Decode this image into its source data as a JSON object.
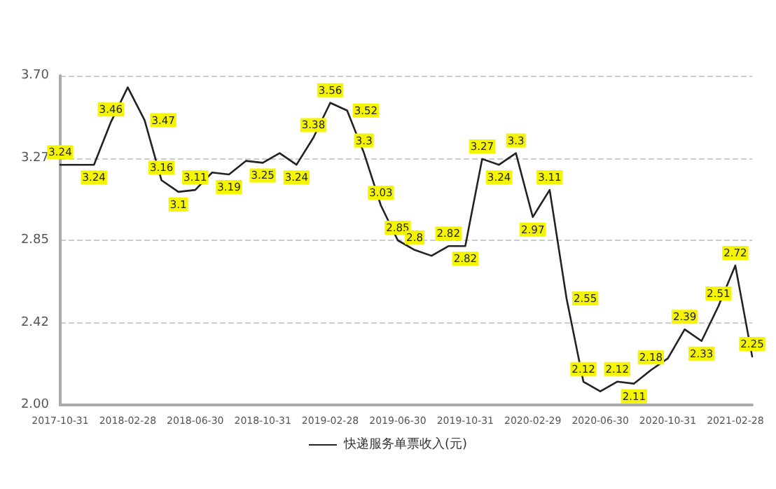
{
  "chart_data": {
    "type": "line",
    "categories": [
      "2017-10-31",
      null,
      null,
      null,
      "2018-02-28",
      null,
      null,
      null,
      "2018-06-30",
      null,
      null,
      null,
      "2018-10-31",
      null,
      null,
      null,
      "2019-02-28",
      null,
      null,
      null,
      "2019-06-30",
      null,
      null,
      null,
      "2019-10-31",
      null,
      null,
      null,
      "2020-02-29",
      null,
      null,
      null,
      "2020-06-30",
      null,
      null,
      null,
      "2020-10-31",
      null,
      null,
      null,
      "2021-02-28",
      null
    ],
    "series": [
      {
        "name": "快递服务单票收入(元)",
        "color": "#222222",
        "values": [
          3.24,
          3.24,
          3.24,
          3.46,
          3.64,
          3.47,
          3.16,
          3.1,
          3.11,
          3.2,
          3.19,
          3.26,
          3.25,
          3.3,
          3.24,
          3.38,
          3.56,
          3.52,
          3.3,
          3.03,
          2.85,
          2.8,
          2.77,
          2.82,
          2.82,
          3.27,
          3.24,
          3.3,
          2.97,
          3.11,
          2.55,
          2.12,
          2.07,
          2.12,
          2.11,
          2.18,
          2.24,
          2.39,
          2.33,
          2.51,
          2.72,
          2.25
        ],
        "value_labels": [
          "3.24",
          null,
          "3.24",
          "3.46",
          null,
          "3.47",
          "3.16",
          "3.1",
          "3.11",
          null,
          "3.19",
          null,
          "3.25",
          null,
          "3.24",
          "3.38",
          "3.56",
          "3.52",
          "3.3",
          "3.03",
          "2.85",
          "2.8",
          null,
          "2.82",
          "2.82",
          "3.27",
          "3.24",
          "3.3",
          "2.97",
          "3.11",
          "2.55",
          "2.12",
          null,
          "2.12",
          "2.11",
          "2.18",
          null,
          "2.39",
          "2.33",
          "2.51",
          "2.72",
          "2.25"
        ]
      }
    ],
    "ylim": [
      2.0,
      3.7
    ],
    "yticks": [
      {
        "value": 2.0,
        "label": "2.00"
      },
      {
        "value": 2.425,
        "label": "2.42"
      },
      {
        "value": 2.85,
        "label": "2.85"
      },
      {
        "value": 3.275,
        "label": "3.27"
      },
      {
        "value": 3.7,
        "label": "3.70"
      }
    ],
    "grid": "y",
    "legend": "bottom",
    "marker": "none",
    "line_style": "solid"
  }
}
